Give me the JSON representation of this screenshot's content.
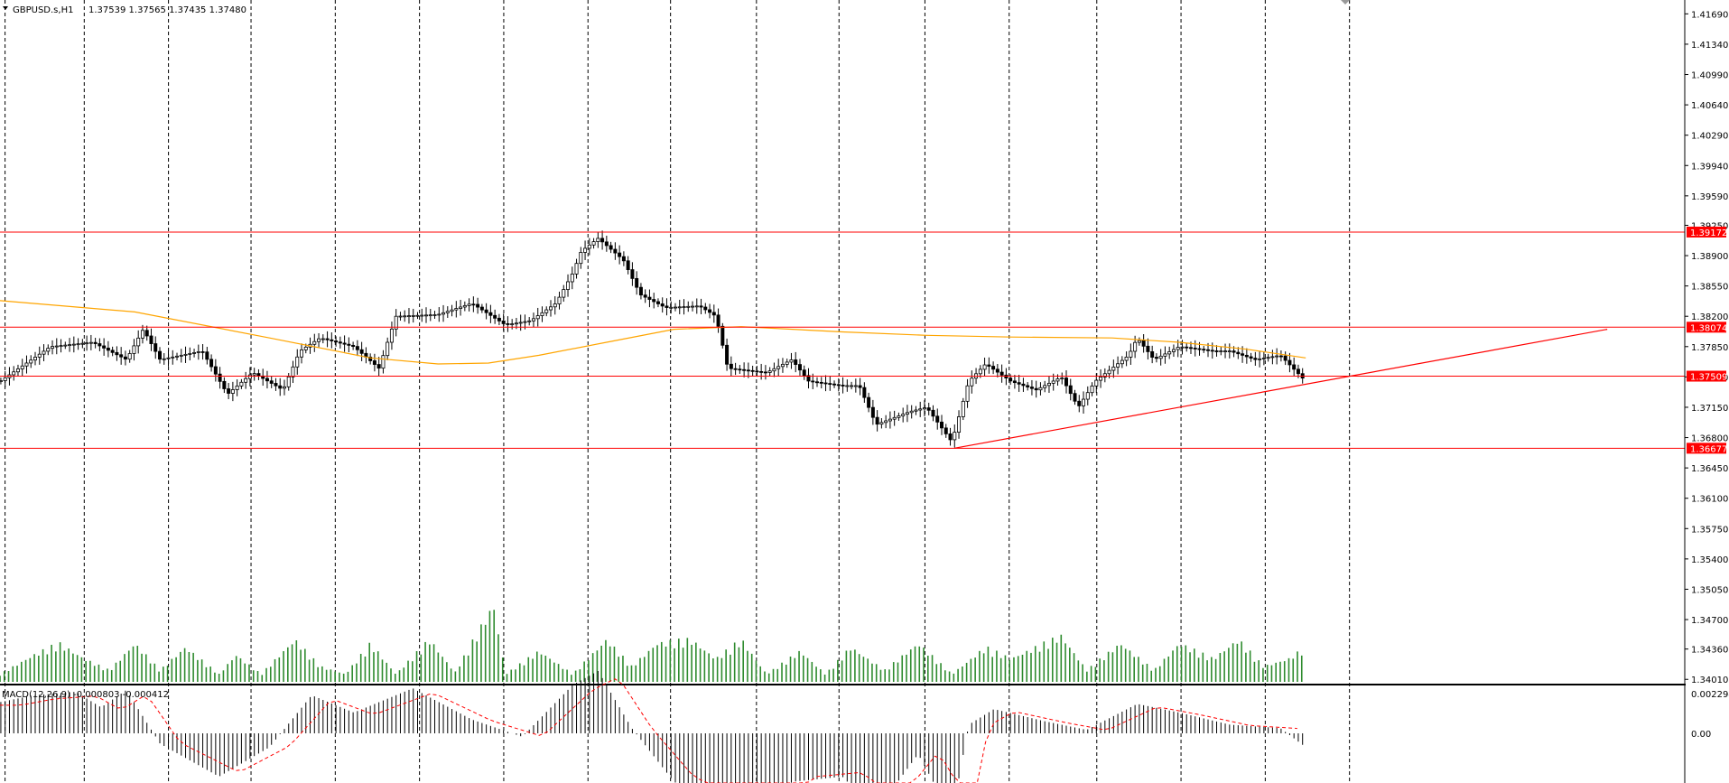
{
  "header": {
    "symbol": "GBPUSD.s,H1",
    "ohlc": "1.37539 1.37565 1.37435 1.37480"
  },
  "colors": {
    "background": "#ffffff",
    "candle": "#000000",
    "grid": "#000000",
    "level_line": "#ff0000",
    "ma_line": "#ffa500",
    "volume": "#2e8b2e",
    "macd_signal": "#ff0000",
    "tag_bg": "#ff0000",
    "tag_fg": "#ffffff"
  },
  "macd_panel": {
    "label": "MACD(12,26,9) -0.000803 -0.000412",
    "ticks": [
      "0.002294",
      "0.00"
    ],
    "tick_values": [
      0.002294,
      0.0
    ]
  },
  "chart_data": {
    "type": "candlestick",
    "title": "GBPUSD.s,H1",
    "y_ticks": [
      "1.41690",
      "1.41340",
      "1.40990",
      "1.40640",
      "1.40290",
      "1.39940",
      "1.39590",
      "1.39250",
      "1.38900",
      "1.38550",
      "1.38200",
      "1.37850",
      "1.37500",
      "1.37150",
      "1.36800",
      "1.36450",
      "1.36100",
      "1.35750",
      "1.35400",
      "1.35050",
      "1.34700",
      "1.34360",
      "1.34010"
    ],
    "y_tick_values": [
      1.4169,
      1.4134,
      1.4099,
      1.4064,
      1.4029,
      1.3994,
      1.3959,
      1.3925,
      1.389,
      1.3855,
      1.382,
      1.3785,
      1.375,
      1.3715,
      1.368,
      1.3645,
      1.361,
      1.3575,
      1.354,
      1.3505,
      1.347,
      1.3436,
      1.3401
    ],
    "ylim": [
      1.3395,
      1.4185
    ],
    "grid": "vertical-dashed",
    "horizontal_levels": [
      {
        "value": 1.39172,
        "label": "1.39172"
      },
      {
        "value": 1.38074,
        "label": "1.38074"
      },
      {
        "value": 1.37509,
        "label": "1.37509"
      },
      {
        "value": 1.36677,
        "label": "1.36677"
      }
    ],
    "trendline": {
      "start": [
        0.5665,
        1.36677
      ],
      "end": [
        0.954,
        1.3805
      ]
    },
    "price_path": [
      [
        0,
        1.3745
      ],
      [
        0.03,
        1.3785
      ],
      [
        0.055,
        1.379
      ],
      [
        0.075,
        1.377
      ],
      [
        0.085,
        1.3805
      ],
      [
        0.095,
        1.377
      ],
      [
        0.12,
        1.378
      ],
      [
        0.135,
        1.373
      ],
      [
        0.15,
        1.3755
      ],
      [
        0.168,
        1.3735
      ],
      [
        0.178,
        1.378
      ],
      [
        0.19,
        1.3795
      ],
      [
        0.21,
        1.3785
      ],
      [
        0.225,
        1.376
      ],
      [
        0.235,
        1.382
      ],
      [
        0.26,
        1.3822
      ],
      [
        0.28,
        1.3835
      ],
      [
        0.3,
        1.381
      ],
      [
        0.315,
        1.3815
      ],
      [
        0.33,
        1.3835
      ],
      [
        0.34,
        1.387
      ],
      [
        0.345,
        1.3895
      ],
      [
        0.355,
        1.391
      ],
      [
        0.37,
        1.3885
      ],
      [
        0.38,
        1.3845
      ],
      [
        0.395,
        1.383
      ],
      [
        0.415,
        1.3832
      ],
      [
        0.425,
        1.382
      ],
      [
        0.432,
        1.376
      ],
      [
        0.455,
        1.3755
      ],
      [
        0.47,
        1.377
      ],
      [
        0.48,
        1.3745
      ],
      [
        0.5,
        1.374
      ],
      [
        0.51,
        1.374
      ],
      [
        0.52,
        1.3695
      ],
      [
        0.54,
        1.371
      ],
      [
        0.55,
        1.3715
      ],
      [
        0.565,
        1.3675
      ],
      [
        0.575,
        1.3745
      ],
      [
        0.585,
        1.3765
      ],
      [
        0.6,
        1.3745
      ],
      [
        0.615,
        1.3735
      ],
      [
        0.63,
        1.375
      ],
      [
        0.64,
        1.3715
      ],
      [
        0.65,
        1.3745
      ],
      [
        0.67,
        1.3775
      ],
      [
        0.675,
        1.3795
      ],
      [
        0.685,
        1.377
      ],
      [
        0.7,
        1.3785
      ],
      [
        0.72,
        1.378
      ],
      [
        0.73,
        1.378
      ],
      [
        0.745,
        1.377
      ],
      [
        0.76,
        1.3775
      ],
      [
        0.77,
        1.3755
      ],
      [
        0.775,
        1.3745
      ]
    ],
    "ma_path": [
      [
        0,
        1.3838
      ],
      [
        0.08,
        1.3825
      ],
      [
        0.16,
        1.3795
      ],
      [
        0.22,
        1.3772
      ],
      [
        0.26,
        1.3765
      ],
      [
        0.29,
        1.3766
      ],
      [
        0.32,
        1.3775
      ],
      [
        0.36,
        1.379
      ],
      [
        0.4,
        1.3805
      ],
      [
        0.44,
        1.3808
      ],
      [
        0.5,
        1.3802
      ],
      [
        0.55,
        1.3798
      ],
      [
        0.6,
        1.3796
      ],
      [
        0.66,
        1.3795
      ],
      [
        0.7,
        1.379
      ],
      [
        0.74,
        1.3782
      ],
      [
        0.775,
        1.3772
      ]
    ],
    "volume_path": [
      [
        0,
        0.1
      ],
      [
        0.02,
        0.35
      ],
      [
        0.035,
        0.5
      ],
      [
        0.05,
        0.3
      ],
      [
        0.065,
        0.15
      ],
      [
        0.08,
        0.5
      ],
      [
        0.095,
        0.15
      ],
      [
        0.11,
        0.45
      ],
      [
        0.13,
        0.1
      ],
      [
        0.14,
        0.35
      ],
      [
        0.155,
        0.1
      ],
      [
        0.175,
        0.55
      ],
      [
        0.19,
        0.2
      ],
      [
        0.205,
        0.1
      ],
      [
        0.22,
        0.5
      ],
      [
        0.235,
        0.1
      ],
      [
        0.255,
        0.55
      ],
      [
        0.27,
        0.12
      ],
      [
        0.293,
        1.0
      ],
      [
        0.3,
        0.1
      ],
      [
        0.32,
        0.4
      ],
      [
        0.34,
        0.1
      ],
      [
        0.36,
        0.55
      ],
      [
        0.375,
        0.2
      ],
      [
        0.39,
        0.5
      ],
      [
        0.41,
        0.55
      ],
      [
        0.425,
        0.3
      ],
      [
        0.44,
        0.55
      ],
      [
        0.455,
        0.1
      ],
      [
        0.475,
        0.4
      ],
      [
        0.49,
        0.1
      ],
      [
        0.505,
        0.45
      ],
      [
        0.525,
        0.15
      ],
      [
        0.545,
        0.5
      ],
      [
        0.565,
        0.1
      ],
      [
        0.585,
        0.45
      ],
      [
        0.6,
        0.3
      ],
      [
        0.63,
        0.6
      ],
      [
        0.645,
        0.15
      ],
      [
        0.665,
        0.5
      ],
      [
        0.685,
        0.15
      ],
      [
        0.7,
        0.5
      ],
      [
        0.72,
        0.3
      ],
      [
        0.735,
        0.55
      ],
      [
        0.75,
        0.2
      ],
      [
        0.765,
        0.3
      ],
      [
        0.775,
        0.45
      ]
    ],
    "macd_path": [
      [
        0,
        0.0018
      ],
      [
        0.02,
        0.0022
      ],
      [
        0.045,
        0.0024
      ],
      [
        0.06,
        0.0015
      ],
      [
        0.075,
        0.0025
      ],
      [
        0.095,
        -0.0006
      ],
      [
        0.13,
        -0.0025
      ],
      [
        0.16,
        -0.0008
      ],
      [
        0.185,
        0.0022
      ],
      [
        0.21,
        0.0012
      ],
      [
        0.245,
        0.0026
      ],
      [
        0.28,
        0.0008
      ],
      [
        0.31,
        -0.0002
      ],
      [
        0.34,
        0.0028
      ],
      [
        0.355,
        0.0036
      ],
      [
        0.375,
        0.0003
      ],
      [
        0.4,
        -0.0028
      ],
      [
        0.43,
        -0.0042
      ],
      [
        0.445,
        -0.0068
      ],
      [
        0.47,
        -0.0028
      ],
      [
        0.5,
        -0.0025
      ],
      [
        0.52,
        -0.0045
      ],
      [
        0.545,
        -0.0012
      ],
      [
        0.565,
        -0.0048
      ],
      [
        0.575,
        0.0005
      ],
      [
        0.59,
        0.0014
      ],
      [
        0.62,
        0.0007
      ],
      [
        0.645,
        0.0002
      ],
      [
        0.675,
        0.0017
      ],
      [
        0.7,
        0.0012
      ],
      [
        0.73,
        0.0005
      ],
      [
        0.76,
        0.0003
      ],
      [
        0.775,
        -0.0008
      ]
    ]
  }
}
